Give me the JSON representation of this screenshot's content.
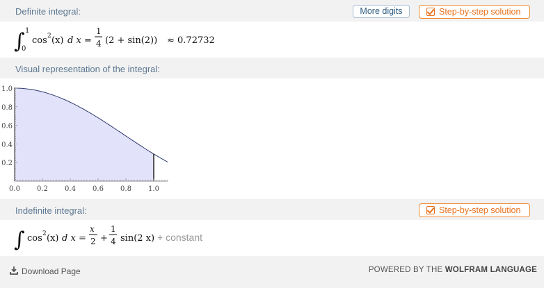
{
  "definite": {
    "title": "Definite integral:",
    "more_digits": "More digits",
    "step_label": "Step-by-step solution",
    "upper": "1",
    "lower": "0",
    "integrand_fn": "cos",
    "exp": "2",
    "arg": "(x)",
    "dx": "d x",
    "eq": "=",
    "num": "1",
    "den": "4",
    "rest": "(2 + sin(2))",
    "approx": "≈ 0.72732"
  },
  "visual": {
    "title": "Visual representation of the integral:"
  },
  "chart_data": {
    "type": "area",
    "function": "cos^2(x)",
    "x": [
      0.0,
      0.1,
      0.2,
      0.3,
      0.4,
      0.5,
      0.6,
      0.7,
      0.8,
      0.9,
      1.0,
      1.1
    ],
    "y": [
      1.0,
      0.99,
      0.961,
      0.913,
      0.848,
      0.77,
      0.681,
      0.585,
      0.485,
      0.386,
      0.292,
      0.205
    ],
    "shaded_range": [
      0.0,
      1.0
    ],
    "x_ticks": [
      "0.0",
      "0.2",
      "0.4",
      "0.6",
      "0.8",
      "1.0"
    ],
    "y_ticks": [
      "0.2",
      "0.4",
      "0.6",
      "0.8",
      "1.0"
    ],
    "xlim": [
      0.0,
      1.1
    ],
    "ylim": [
      0.0,
      1.0
    ],
    "fill_color": "#e2e2fa",
    "line_color": "#2e3a6e",
    "title": "",
    "xlabel": "",
    "ylabel": ""
  },
  "indefinite": {
    "title": "Indefinite integral:",
    "step_label": "Step-by-step solution",
    "integrand_fn": "cos",
    "exp": "2",
    "arg": "(x)",
    "dx": "d x",
    "eq": "=",
    "frac1_num": "x",
    "frac1_den": "2",
    "plus": "+",
    "frac2_num": "1",
    "frac2_den": "4",
    "sin_term": "sin(2 x)",
    "constant": "+ constant"
  },
  "footer": {
    "download": "Download Page",
    "powered_prefix": "POWERED BY THE ",
    "powered_brand": "WOLFRAM LANGUAGE"
  },
  "colors": {
    "accent_orange": "#e8711c",
    "title_blue": "#5d7892"
  },
  "icons": {
    "download": "download-icon",
    "checkbox": "checkbox-icon"
  }
}
